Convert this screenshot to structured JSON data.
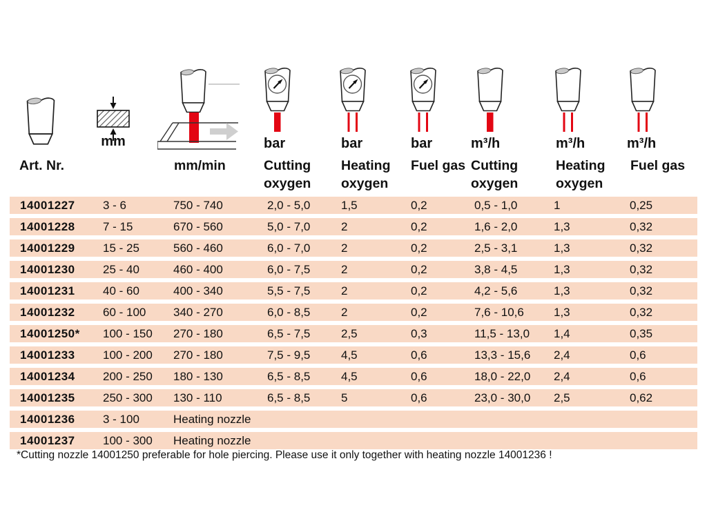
{
  "colors": {
    "row_band": "#f9d9c5",
    "accent_red": "#e30613"
  },
  "header": {
    "art": {
      "label": "Art. Nr.",
      "icon": "cutting-nozzle-icon"
    },
    "mm": {
      "label": "mm",
      "icon": "material-thickness-icon"
    },
    "speed": {
      "label": "mm/min",
      "icon": "cutting-speed-icon"
    },
    "bar_cut": {
      "unit": "bar",
      "line1": "Cutting",
      "line2": "oxygen",
      "icon": "gauge-nozzle-single-jet-icon"
    },
    "bar_heat": {
      "unit": "bar",
      "line1": "Heating",
      "line2": "oxygen",
      "icon": "gauge-nozzle-double-jet-icon"
    },
    "bar_fuel": {
      "unit": "bar",
      "line1": "Fuel gas",
      "line2": "",
      "icon": "gauge-nozzle-double-jet-icon"
    },
    "m3_cut": {
      "unit": "m³/h",
      "line1": "Cutting",
      "line2": "oxygen",
      "icon": "nozzle-single-jet-icon"
    },
    "m3_heat": {
      "unit": "m³/h",
      "line1": "Heating",
      "line2": "oxygen",
      "icon": "nozzle-double-jet-icon"
    },
    "m3_fuel": {
      "unit": "m³/h",
      "line1": "Fuel gas",
      "line2": "",
      "icon": "nozzle-double-jet-icon"
    }
  },
  "table": {
    "column_keys": [
      "art",
      "mm",
      "speed",
      "bar_cut",
      "bar_heat",
      "bar_fuel",
      "m3_cut",
      "m3_heat",
      "m3_fuel"
    ],
    "rows": [
      {
        "art": "14001227",
        "mm": "3 - 6",
        "speed": "750 - 740",
        "bar_cut": "2,0 - 5,0",
        "bar_heat": "1,5",
        "bar_fuel": "0,2",
        "m3_cut": "0,5 - 1,0",
        "m3_heat": "1",
        "m3_fuel": "0,25"
      },
      {
        "art": "14001228",
        "mm": "7 - 15",
        "speed": "670 - 560",
        "bar_cut": "5,0 - 7,0",
        "bar_heat": "2",
        "bar_fuel": "0,2",
        "m3_cut": "1,6 - 2,0",
        "m3_heat": "1,3",
        "m3_fuel": "0,32"
      },
      {
        "art": "14001229",
        "mm": "15 - 25",
        "speed": "560 - 460",
        "bar_cut": "6,0 - 7,0",
        "bar_heat": "2",
        "bar_fuel": "0,2",
        "m3_cut": "2,5 - 3,1",
        "m3_heat": "1,3",
        "m3_fuel": "0,32"
      },
      {
        "art": "14001230",
        "mm": "25 - 40",
        "speed": "460 - 400",
        "bar_cut": "6,0 - 7,5",
        "bar_heat": "2",
        "bar_fuel": "0,2",
        "m3_cut": "3,8 - 4,5",
        "m3_heat": "1,3",
        "m3_fuel": "0,32"
      },
      {
        "art": "14001231",
        "mm": "40 - 60",
        "speed": "400 - 340",
        "bar_cut": "5,5 - 7,5",
        "bar_heat": "2",
        "bar_fuel": "0,2",
        "m3_cut": "4,2 - 5,6",
        "m3_heat": "1,3",
        "m3_fuel": "0,32"
      },
      {
        "art": "14001232",
        "mm": "60 - 100",
        "speed": "340 - 270",
        "bar_cut": "6,0 - 8,5",
        "bar_heat": "2",
        "bar_fuel": "0,2",
        "m3_cut": "7,6 - 10,6",
        "m3_heat": "1,3",
        "m3_fuel": "0,32"
      },
      {
        "art": "14001250*",
        "mm": "100 - 150",
        "speed": "270 - 180",
        "bar_cut": "6,5 - 7,5",
        "bar_heat": "2,5",
        "bar_fuel": "0,3",
        "m3_cut": "11,5 - 13,0",
        "m3_heat": "1,4",
        "m3_fuel": "0,35"
      },
      {
        "art": "14001233",
        "mm": "100 - 200",
        "speed": "270 - 180",
        "bar_cut": "7,5 - 9,5",
        "bar_heat": "4,5",
        "bar_fuel": "0,6",
        "m3_cut": "13,3 - 15,6",
        "m3_heat": "2,4",
        "m3_fuel": "0,6"
      },
      {
        "art": "14001234",
        "mm": "200 - 250",
        "speed": "180 - 130",
        "bar_cut": "6,5 - 8,5",
        "bar_heat": "4,5",
        "bar_fuel": "0,6",
        "m3_cut": "18,0 - 22,0",
        "m3_heat": "2,4",
        "m3_fuel": "0,6"
      },
      {
        "art": "14001235",
        "mm": "250 - 300",
        "speed": "130 - 110",
        "bar_cut": "6,5 - 8,5",
        "bar_heat": "5",
        "bar_fuel": "0,6",
        "m3_cut": "23,0 - 30,0",
        "m3_heat": "2,5",
        "m3_fuel": "0,62"
      },
      {
        "art": "14001236",
        "mm": "3 - 100",
        "speed": "Heating nozzle",
        "bar_cut": "",
        "bar_heat": "",
        "bar_fuel": "",
        "m3_cut": "",
        "m3_heat": "",
        "m3_fuel": ""
      },
      {
        "art": "14001237",
        "mm": "100 - 300",
        "speed": "Heating nozzle",
        "bar_cut": "",
        "bar_heat": "",
        "bar_fuel": "",
        "m3_cut": "",
        "m3_heat": "",
        "m3_fuel": ""
      }
    ]
  },
  "footnote": "*Cutting nozzle 14001250 preferable for hole piercing. Please use it only together with heating nozzle 14001236 !"
}
